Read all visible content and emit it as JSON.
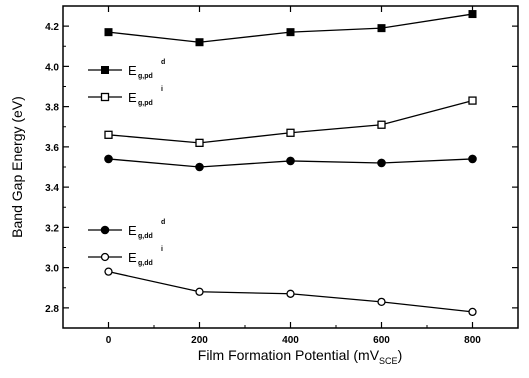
{
  "chart_data": {
    "type": "line",
    "xlabel_main": "Film Formation Potential (mV",
    "xlabel_sub": "SCE",
    "xlabel_end": ")",
    "ylabel": "Band Gap Energy (eV)",
    "xlim": [
      -100,
      900
    ],
    "ylim": [
      2.7,
      4.3
    ],
    "x_ticks": [
      0,
      200,
      400,
      600,
      800
    ],
    "y_ticks": [
      2.8,
      3.0,
      3.2,
      3.4,
      3.6,
      3.8,
      4.0,
      4.2
    ],
    "x": [
      0,
      200,
      400,
      600,
      800
    ],
    "series": [
      {
        "name": "E_g,pd^d",
        "label_main": "E",
        "label_sub": "g,pd",
        "label_sup": "d",
        "marker": "filled-square",
        "values": [
          4.17,
          4.12,
          4.17,
          4.19,
          4.26
        ]
      },
      {
        "name": "E_g,pd^i",
        "label_main": "E",
        "label_sub": "g,pd",
        "label_sup": "i",
        "marker": "open-square",
        "values": [
          3.66,
          3.62,
          3.67,
          3.71,
          3.83
        ]
      },
      {
        "name": "E_g,dd^d",
        "label_main": "E",
        "label_sub": "g,dd",
        "label_sup": "d",
        "marker": "filled-circle",
        "values": [
          3.54,
          3.5,
          3.53,
          3.52,
          3.54
        ]
      },
      {
        "name": "E_g,dd^i",
        "label_main": "E",
        "label_sub": "g,dd",
        "label_sup": "i",
        "marker": "open-circle",
        "values": [
          2.98,
          2.88,
          2.87,
          2.83,
          2.78
        ]
      }
    ],
    "legend_placement": "left",
    "grid": false
  }
}
